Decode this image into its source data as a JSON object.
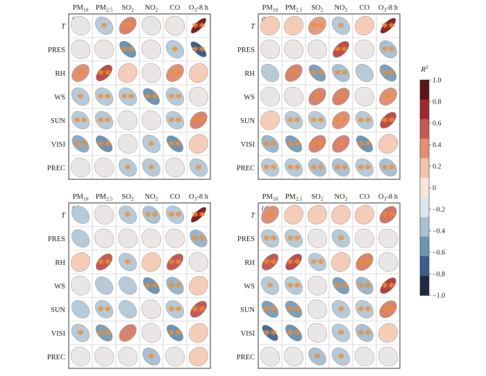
{
  "chart_data": {
    "type": "heatmap",
    "columns": [
      "PM10",
      "PM2.5",
      "SO2",
      "NO2",
      "CO",
      "O3-8 h"
    ],
    "rows": [
      "T",
      "PRES",
      "RH",
      "WS",
      "SUN",
      "VISI",
      "PREC"
    ],
    "colorbar": {
      "title": "R²",
      "range": [
        -1.0,
        1.0
      ],
      "ticks": [
        "1.0",
        "0.8",
        "0.6",
        "0.4",
        "0.2",
        "0",
        "−0.2",
        "−0.4",
        "−0.6",
        "−0.8",
        "−1.0"
      ],
      "colors": [
        "#5c1418",
        "#9e2a2f",
        "#c45a55",
        "#df9077",
        "#f2c3ad",
        "#fbe5da",
        "#dde6ec",
        "#a9c1d2",
        "#6e94b4",
        "#3c5e8c",
        "#232843"
      ]
    },
    "panels": [
      {
        "label": "(a)",
        "values": [
          [
            -0.15,
            -0.35,
            0.45,
            -0.15,
            -0.1,
            0.9
          ],
          [
            -0.12,
            -0.12,
            -0.6,
            -0.12,
            -0.35,
            -0.8
          ],
          [
            0.4,
            0.65,
            0.15,
            -0.12,
            0.4,
            0.15
          ],
          [
            -0.35,
            -0.35,
            -0.35,
            -0.6,
            -0.35,
            -0.12
          ],
          [
            -0.35,
            -0.35,
            -0.12,
            -0.12,
            -0.35,
            0.45
          ],
          [
            -0.5,
            -0.6,
            -0.12,
            -0.35,
            -0.6,
            0.15
          ],
          [
            -0.12,
            -0.12,
            -0.35,
            -0.35,
            -0.12,
            -0.35
          ]
        ],
        "stars": [
          [
            0,
            1,
            2,
            0,
            0,
            2
          ],
          [
            0,
            0,
            2,
            0,
            1,
            2
          ],
          [
            1,
            2,
            0,
            0,
            2,
            0
          ],
          [
            1,
            2,
            2,
            2,
            2,
            0
          ],
          [
            2,
            2,
            0,
            0,
            2,
            2
          ],
          [
            2,
            2,
            0,
            1,
            2,
            0
          ],
          [
            0,
            0,
            1,
            1,
            0,
            1
          ]
        ]
      },
      {
        "label": "(b)",
        "values": [
          [
            0.15,
            0.15,
            0.35,
            -0.35,
            0.15,
            0.85
          ],
          [
            -0.12,
            -0.12,
            -0.12,
            0.65,
            -0.12,
            -0.4
          ],
          [
            -0.35,
            0.45,
            -0.55,
            -0.4,
            -0.35,
            -0.55
          ],
          [
            -0.12,
            -0.12,
            0.45,
            0.45,
            -0.12,
            0.4
          ],
          [
            0.15,
            -0.35,
            -0.35,
            0.4,
            -0.35,
            0.65
          ],
          [
            -0.45,
            -0.55,
            0.45,
            0.45,
            -0.6,
            0.15
          ],
          [
            -0.35,
            -0.35,
            -0.4,
            -0.4,
            -0.35,
            -0.4
          ]
        ],
        "stars": [
          [
            0,
            0,
            2,
            1,
            0,
            2
          ],
          [
            0,
            0,
            0,
            2,
            0,
            2
          ],
          [
            0,
            1,
            2,
            2,
            0,
            2
          ],
          [
            0,
            0,
            1,
            1,
            0,
            1
          ],
          [
            0,
            2,
            2,
            2,
            2,
            2
          ],
          [
            2,
            2,
            2,
            1,
            2,
            0
          ],
          [
            2,
            2,
            2,
            2,
            2,
            2
          ]
        ]
      },
      {
        "label": "(c)",
        "values": [
          [
            -0.35,
            -0.12,
            -0.35,
            -0.4,
            -0.35,
            0.9
          ],
          [
            -0.35,
            -0.12,
            -0.12,
            -0.12,
            -0.12,
            -0.45
          ],
          [
            0.15,
            0.6,
            -0.35,
            0.15,
            0.6,
            -0.12
          ],
          [
            -0.12,
            -0.35,
            -0.35,
            -0.6,
            -0.45,
            0.15
          ],
          [
            -0.35,
            -0.35,
            -0.35,
            -0.12,
            -0.35,
            0.6
          ],
          [
            -0.35,
            -0.55,
            0.45,
            -0.12,
            -0.6,
            0.15
          ],
          [
            -0.12,
            -0.12,
            -0.12,
            -0.4,
            -0.12,
            0.15
          ]
        ],
        "stars": [
          [
            0,
            0,
            1,
            2,
            2,
            2
          ],
          [
            0,
            0,
            0,
            0,
            0,
            2
          ],
          [
            0,
            2,
            1,
            0,
            2,
            0
          ],
          [
            0,
            0,
            0,
            2,
            2,
            0
          ],
          [
            0,
            2,
            0,
            0,
            2,
            2
          ],
          [
            1,
            2,
            0,
            0,
            2,
            0
          ],
          [
            0,
            0,
            0,
            1,
            0,
            0
          ]
        ]
      },
      {
        "label": "(d)",
        "values": [
          [
            0.4,
            0.15,
            0.15,
            0.15,
            0.15,
            0.5
          ],
          [
            -0.35,
            -0.35,
            -0.12,
            -0.35,
            -0.12,
            -0.12
          ],
          [
            0.6,
            0.65,
            -0.35,
            0.15,
            0.45,
            -0.12
          ],
          [
            -0.35,
            -0.35,
            -0.12,
            -0.55,
            -0.45,
            0.7
          ],
          [
            -0.55,
            -0.55,
            -0.12,
            -0.35,
            -0.35,
            0.45
          ],
          [
            -0.75,
            -0.6,
            -0.12,
            -0.35,
            -0.4,
            0.15
          ],
          [
            -0.12,
            -0.12,
            -0.4,
            -0.35,
            -0.12,
            -0.12
          ]
        ],
        "stars": [
          [
            1,
            0,
            0,
            0,
            0,
            2
          ],
          [
            2,
            2,
            0,
            1,
            0,
            0
          ],
          [
            2,
            2,
            2,
            0,
            2,
            0
          ],
          [
            1,
            2,
            0,
            2,
            2,
            2
          ],
          [
            2,
            2,
            0,
            1,
            2,
            2
          ],
          [
            2,
            2,
            0,
            1,
            2,
            0
          ],
          [
            0,
            0,
            1,
            1,
            0,
            0
          ]
        ]
      }
    ]
  }
}
